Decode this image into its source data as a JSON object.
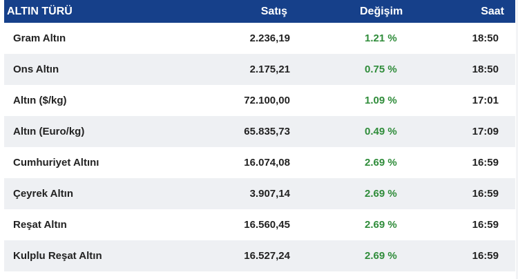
{
  "table": {
    "headers": {
      "name": "ALTIN TÜRÜ",
      "price": "Satış",
      "change": "Değişim",
      "time": "Saat"
    },
    "rows": [
      {
        "name": "Gram Altın",
        "price": "2.236,19",
        "change": "1.21 %",
        "time": "18:50"
      },
      {
        "name": "Ons Altın",
        "price": "2.175,21",
        "change": "0.75 %",
        "time": "18:50"
      },
      {
        "name": "Altın ($/kg)",
        "price": "72.100,00",
        "change": "1.09 %",
        "time": "17:01"
      },
      {
        "name": "Altın (Euro/kg)",
        "price": "65.835,73",
        "change": "0.49 %",
        "time": "17:09"
      },
      {
        "name": "Cumhuriyet Altını",
        "price": "16.074,08",
        "change": "2.69 %",
        "time": "16:59"
      },
      {
        "name": "Çeyrek Altın",
        "price": "3.907,14",
        "change": "2.69 %",
        "time": "16:59"
      },
      {
        "name": "Reşat Altın",
        "price": "16.560,45",
        "change": "2.69 %",
        "time": "16:59"
      },
      {
        "name": "Kulplu Reşat Altın",
        "price": "16.527,24",
        "change": "2.69 %",
        "time": "16:59"
      }
    ]
  },
  "colors": {
    "header_bg": "#16408a",
    "header_text": "#ffffff",
    "positive_change": "#2f8c3a",
    "stripe_bg": "#eef0f3"
  }
}
